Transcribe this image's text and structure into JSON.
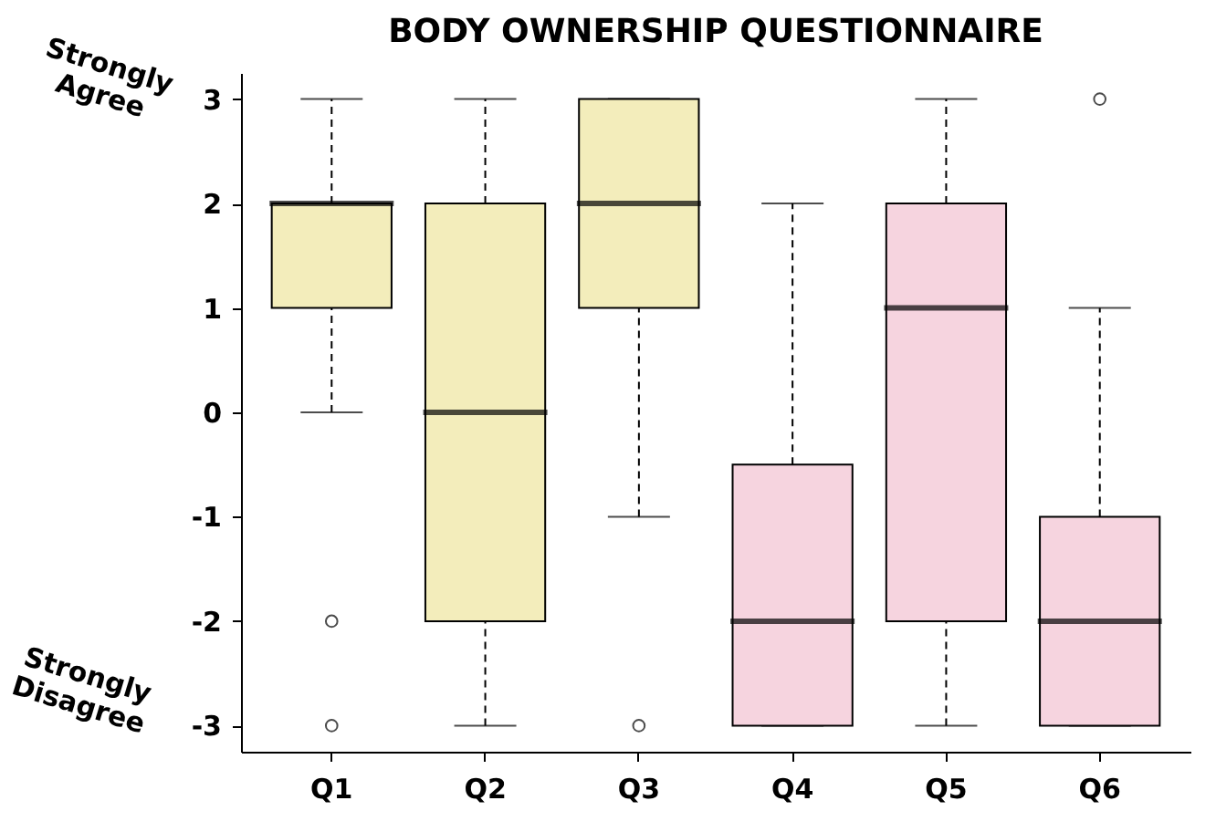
{
  "chart_data": {
    "type": "box",
    "title": "BODY OWNERSHIP QUESTIONNAIRE",
    "categories": [
      "Q1",
      "Q2",
      "Q3",
      "Q4",
      "Q5",
      "Q6"
    ],
    "boxes": [
      {
        "low": 0,
        "q1": 1,
        "median": 2,
        "q3": 2,
        "high": 3,
        "outliers": [
          -2,
          -3
        ]
      },
      {
        "low": -3,
        "q1": -2,
        "median": 0,
        "q3": 2,
        "high": 3
      },
      {
        "low": -1,
        "q1": 1,
        "median": 2,
        "q3": 3,
        "high": 3,
        "outliers": [
          -3
        ]
      },
      {
        "low": -3,
        "q1": -3,
        "median": -2,
        "q3": -0.5,
        "high": 2
      },
      {
        "low": -3,
        "q1": -2,
        "median": 1,
        "q3": 2,
        "high": 3
      },
      {
        "low": -3,
        "q1": -3,
        "median": -2,
        "q3": -1,
        "high": 1,
        "outliers": [
          3
        ]
      }
    ],
    "colors": [
      "#f3edbb",
      "#f3edbb",
      "#f3edbb",
      "#f6d4df",
      "#f6d4df",
      "#f6d4df"
    ],
    "ylim": [
      -3.25,
      3.25
    ],
    "yticks": [
      -3,
      -2,
      -1,
      0,
      1,
      2,
      3
    ],
    "annotations": [
      "Strongly Agree",
      "Strongly Disagree"
    ],
    "grid": false
  }
}
